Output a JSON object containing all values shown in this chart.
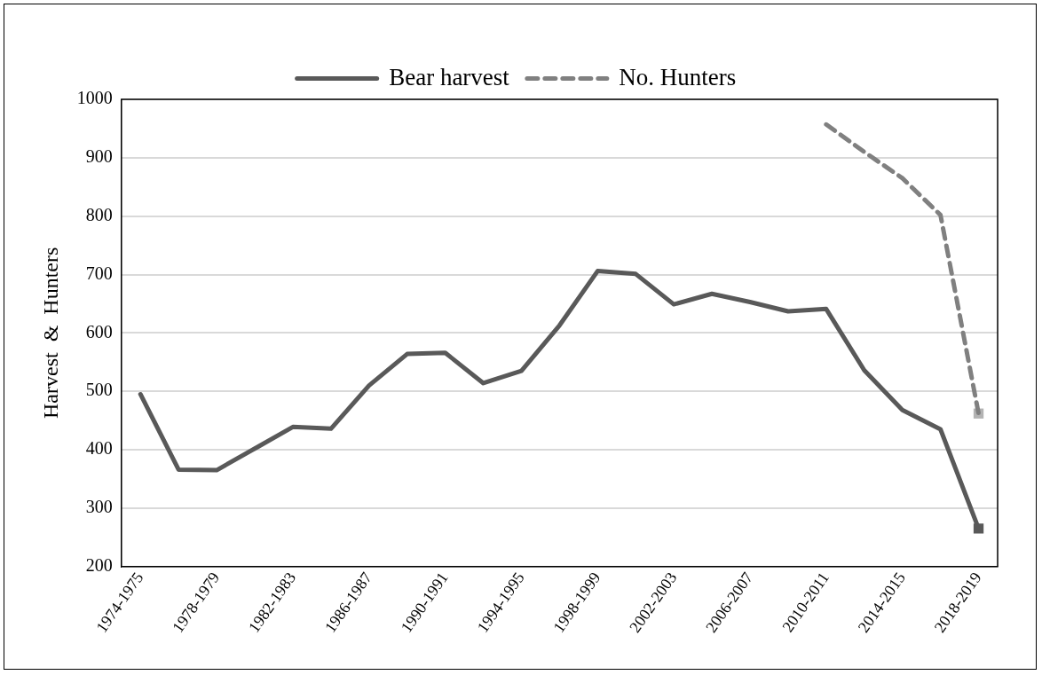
{
  "chart_data": {
    "type": "line",
    "ylabel": "Harvest  &  Hunters",
    "categories": [
      "1974-1975",
      null,
      "1978-1979",
      null,
      "1982-1983",
      null,
      "1986-1987",
      null,
      "1990-1991",
      null,
      "1994-1995",
      null,
      "1998-1999",
      null,
      "2002-2003",
      null,
      "2006-2007",
      null,
      "2010-2011",
      null,
      "2014-2015",
      null,
      "2018-2019"
    ],
    "series": [
      {
        "name": "Bear harvest",
        "color": "#595959",
        "line_style": "solid",
        "values": [
          495,
          366,
          365,
          402,
          439,
          436,
          510,
          564,
          566,
          514,
          535,
          613,
          706,
          701,
          649,
          667,
          653,
          637,
          641,
          536,
          468,
          435,
          265
        ]
      },
      {
        "name": "No. Hunters",
        "color": "#808080",
        "line_style": "dashed",
        "values": [
          null,
          null,
          null,
          null,
          null,
          null,
          null,
          null,
          null,
          null,
          null,
          null,
          null,
          null,
          null,
          null,
          null,
          null,
          957,
          910,
          865,
          802,
          462
        ]
      },
      {
        "type": "scatter",
        "color": "#595959",
        "marker": "square",
        "x": [
          "2018-2019"
        ],
        "values": [
          265
        ]
      },
      {
        "type": "scatter",
        "color": "#b3b3b3",
        "marker": "square",
        "x": [
          "2018-2019"
        ],
        "values": [
          462
        ]
      }
    ],
    "ylim": [
      200,
      1000
    ],
    "yticks": [
      200,
      300,
      400,
      500,
      600,
      700,
      800,
      900,
      1000
    ],
    "grid": "y",
    "legend": "top",
    "marker": "none"
  }
}
